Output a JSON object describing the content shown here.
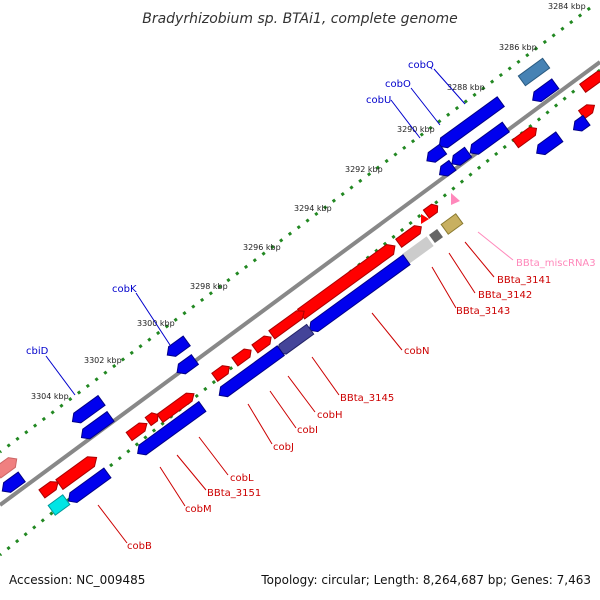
{
  "title": "Bradyrhizobium sp. BTAi1, complete genome",
  "footer": {
    "accession": "Accession: NC_009485",
    "info": "Topology: circular; Length: 8,264,687 bp; Genes: 7,463"
  },
  "colors": {
    "forward": "#ff0000",
    "reverse": "#0000ee",
    "backbone": "#888888",
    "tick": "#228822",
    "label_blue": "#0000cc",
    "label_red": "#cc0000",
    "label_pink": "#ff88bb"
  },
  "scale_labels": [
    "3284 kbp",
    "3286 kbp",
    "3288 kbp",
    "3290 kbp",
    "3292 kbp",
    "3294 kbp",
    "3296 kbp",
    "3298 kbp",
    "3300 kbp",
    "3302 kbp",
    "3304 kbp"
  ],
  "gene_labels_top": [
    "cobQ",
    "cobO",
    "cobU",
    "cobK",
    "cbiD"
  ],
  "gene_labels_bottom": [
    "BBta_miscRNA3",
    "BBta_3141",
    "BBta_3142",
    "BBta_3143",
    "cobN",
    "BBta_3145",
    "cobH",
    "cobI",
    "cobJ",
    "cobL",
    "BBta_3151",
    "cobM",
    "cobB"
  ]
}
